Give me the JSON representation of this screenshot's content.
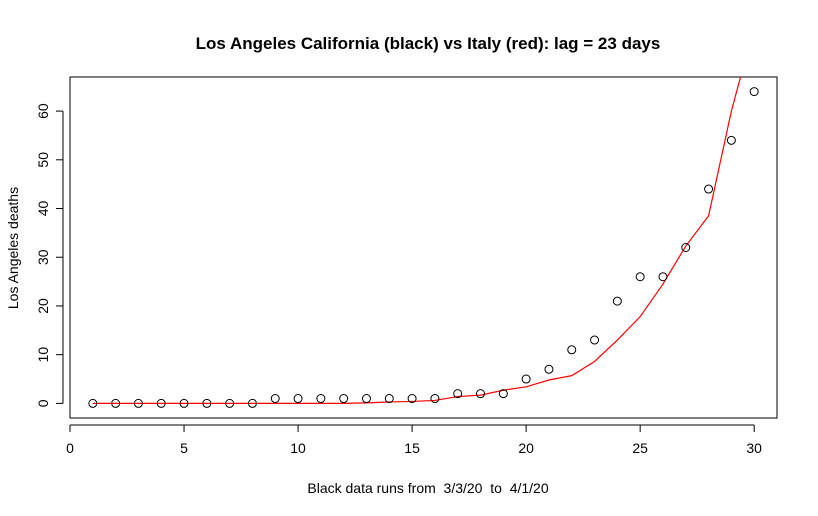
{
  "chart_data": {
    "type": "scatter",
    "title": "Los Angeles California (black) vs Italy (red): lag = 23 days",
    "xlabel": "Black data runs from  3/3/20  to  4/1/20",
    "ylabel": "Los Angeles deaths",
    "xlim": [
      0,
      31
    ],
    "ylim": [
      -3,
      67
    ],
    "xticks": [
      0,
      5,
      10,
      15,
      20,
      25,
      30
    ],
    "yticks": [
      0,
      10,
      20,
      30,
      40,
      50,
      60
    ],
    "grid": false,
    "legend": "none",
    "series": [
      {
        "type": "scatter",
        "color": "#000000",
        "marker": "open-circle",
        "x": [
          1,
          2,
          3,
          4,
          5,
          6,
          7,
          8,
          9,
          10,
          11,
          12,
          13,
          14,
          15,
          16,
          17,
          18,
          19,
          20,
          21,
          22,
          23,
          24,
          25,
          26,
          27,
          28,
          29,
          30
        ],
        "y": [
          0,
          0,
          0,
          0,
          0,
          0,
          0,
          0,
          1,
          1,
          1,
          1,
          1,
          1,
          1,
          1,
          2,
          2,
          2,
          5,
          7,
          11,
          13,
          21,
          26,
          26,
          32,
          44,
          54,
          64
        ]
      },
      {
        "type": "line",
        "color": "#ff0000",
        "x": [
          1,
          2,
          3,
          4,
          5,
          6,
          7,
          8,
          9,
          10,
          11,
          12,
          13,
          14,
          15,
          16,
          17,
          18,
          19,
          20,
          21,
          22,
          23,
          24,
          25,
          26,
          27,
          28,
          29,
          29.4
        ],
        "y": [
          0,
          0,
          0,
          0,
          0,
          0,
          0,
          0,
          0,
          0,
          0,
          0,
          0.1,
          0.3,
          0.4,
          0.6,
          1.4,
          1.7,
          2.7,
          3.4,
          4.8,
          5.7,
          8.6,
          13,
          17.8,
          24.5,
          32.3,
          38.5,
          60,
          67
        ]
      }
    ]
  }
}
